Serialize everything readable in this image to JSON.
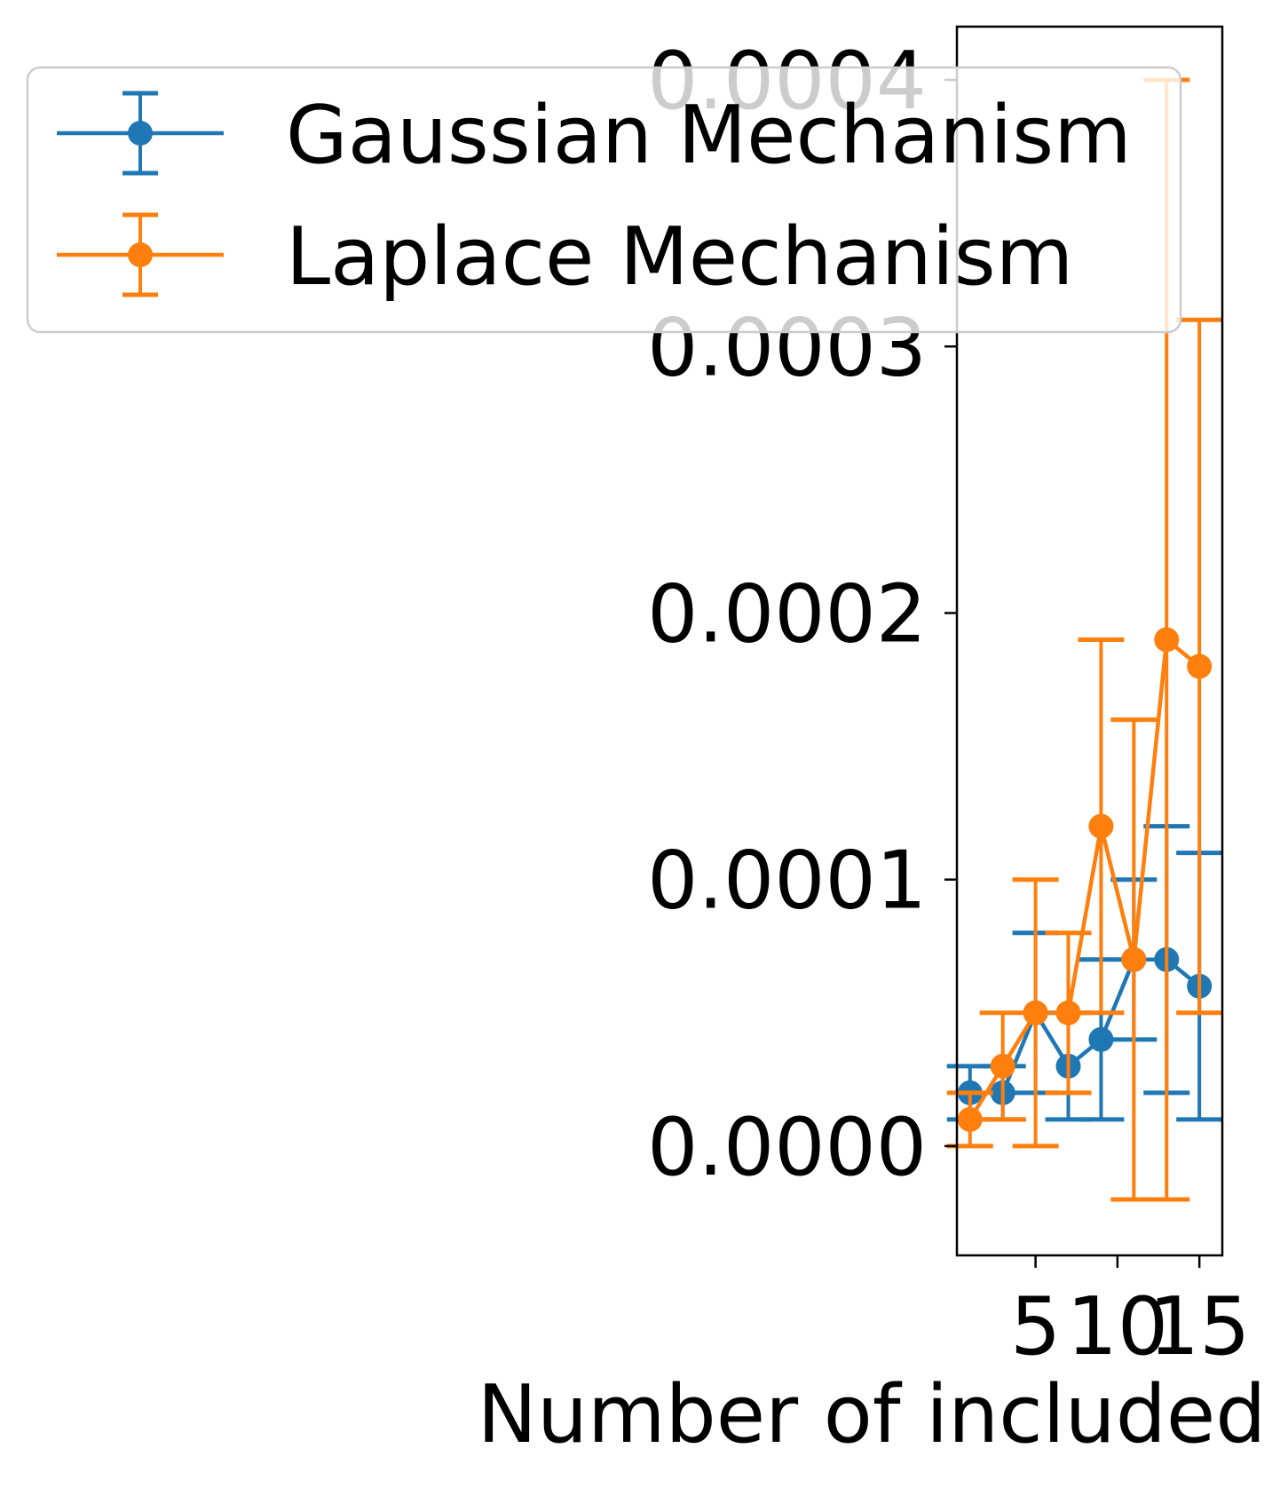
{
  "chart_data": {
    "type": "line",
    "title": "",
    "xlabel": "Number of included",
    "ylabel": "",
    "xlim": [
      0.2,
      16.4
    ],
    "ylim": [
      -4.1e-05,
      0.00042
    ],
    "x_ticks": [
      5,
      10,
      15
    ],
    "x_tick_labels": [
      "5",
      "10",
      "15"
    ],
    "y_ticks": [
      0.0,
      0.0001,
      0.0002,
      0.0003,
      0.0004
    ],
    "y_tick_labels": [
      "0.0000",
      "0.0001",
      "0.0002",
      "0.0003",
      "0.0004"
    ],
    "grid": false,
    "legend_position": "top-left",
    "x": [
      1,
      3,
      5,
      7,
      9,
      11,
      13,
      15
    ],
    "series": [
      {
        "name": "Gaussian Mechanism",
        "color": "#1f77b4",
        "marker": "circle",
        "values": [
          2e-05,
          2e-05,
          5e-05,
          3e-05,
          4e-05,
          7e-05,
          7e-05,
          6e-05
        ],
        "error": [
          1e-05,
          1e-05,
          3e-05,
          2e-05,
          3e-05,
          3e-05,
          5e-05,
          5e-05
        ]
      },
      {
        "name": "Laplace Mechanism",
        "color": "#ff7f0e",
        "marker": "circle",
        "values": [
          1e-05,
          3e-05,
          5e-05,
          5e-05,
          0.00012,
          7e-05,
          0.00019,
          0.00018
        ],
        "error": [
          1e-05,
          2e-05,
          5e-05,
          3e-05,
          7e-05,
          9e-05,
          0.00021,
          0.00013
        ]
      }
    ]
  }
}
